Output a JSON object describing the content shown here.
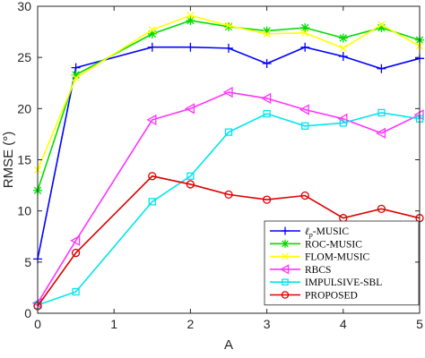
{
  "chart_data": {
    "type": "line",
    "title": "",
    "xlabel": "A",
    "ylabel": "RMSE (°)",
    "xlim": [
      0,
      5
    ],
    "ylim": [
      0,
      30
    ],
    "x_ticks": [
      0,
      1,
      2,
      3,
      4,
      5
    ],
    "y_ticks": [
      0,
      5,
      10,
      15,
      20,
      25,
      30
    ],
    "grid": false,
    "legend_position": "bottom-right",
    "x": [
      0,
      0.5,
      1.5,
      2,
      2.5,
      3,
      3.5,
      4,
      4.5,
      5
    ],
    "series": [
      {
        "name": "ℓp-MUSIC",
        "legend_main": "ℓ",
        "legend_sub": "p",
        "legend_rest": "-MUSIC",
        "color": "#0000ff",
        "marker": "plus",
        "values": [
          5.3,
          24.0,
          26.0,
          26.0,
          25.9,
          24.4,
          26.0,
          25.1,
          23.9,
          24.9
        ]
      },
      {
        "name": "ROC-MUSIC",
        "color": "#00dd00",
        "marker": "asterisk",
        "values": [
          12.0,
          23.3,
          27.3,
          28.6,
          28.0,
          27.6,
          27.9,
          26.9,
          27.9,
          26.7
        ]
      },
      {
        "name": "FLOM-MUSIC",
        "color": "#ffff00",
        "marker": "x",
        "values": [
          14.0,
          23.0,
          27.7,
          29.1,
          28.1,
          27.3,
          27.4,
          25.9,
          28.2,
          26.1
        ]
      },
      {
        "name": "RBCS",
        "color": "#ff33ff",
        "marker": "triangle-left",
        "values": [
          1.0,
          7.1,
          18.9,
          20.0,
          21.6,
          21.0,
          19.9,
          19.0,
          17.6,
          19.4
        ]
      },
      {
        "name": "IMPULSIVE-SBL",
        "color": "#00e5ee",
        "marker": "square",
        "values": [
          0.8,
          2.1,
          10.9,
          13.4,
          17.7,
          19.5,
          18.3,
          18.6,
          19.6,
          19.0
        ]
      },
      {
        "name": "PROPOSED",
        "color": "#dd0000",
        "marker": "circle",
        "values": [
          0.7,
          5.9,
          13.4,
          12.6,
          11.6,
          11.1,
          11.5,
          9.3,
          10.2,
          9.3
        ]
      }
    ]
  }
}
